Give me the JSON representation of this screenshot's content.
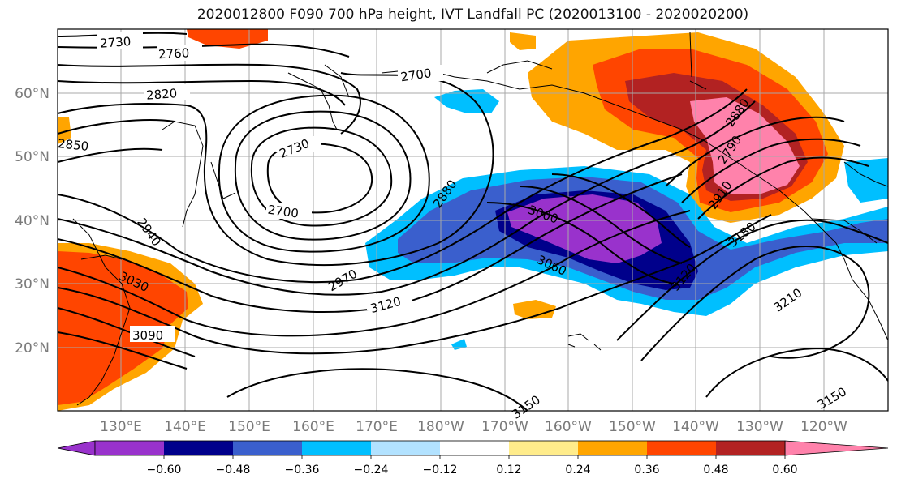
{
  "title": "2020012800 F090 700 hPa height, IVT Landfall PC (2020013100 - 2020020200)",
  "lat_labels": [
    "60°N",
    "50°N",
    "40°N",
    "30°N",
    "20°N"
  ],
  "lon_labels": [
    "130°E",
    "140°E",
    "150°E",
    "160°E",
    "170°E",
    "180°W",
    "170°W",
    "160°W",
    "150°W",
    "140°W",
    "130°W",
    "120°W"
  ],
  "colorbar": {
    "colors": [
      "#9932cc",
      "#00008b",
      "#3a5fcd",
      "#00bfff",
      "#b2e2ff",
      "#ffffff",
      "#ffec8b",
      "#ffa500",
      "#ff4500",
      "#b22222",
      "#ff82ab"
    ],
    "tick_labels": [
      "−0.60",
      "−0.48",
      "−0.36",
      "−0.24",
      "−0.12",
      "0.12",
      "0.24",
      "0.36",
      "0.48",
      "0.60"
    ]
  },
  "contour_labels": [
    "2730",
    "2760",
    "2820",
    "2850",
    "2700",
    "2730",
    "2700",
    "2880",
    "2940",
    "2970",
    "3000",
    "3030",
    "3060",
    "3090",
    "3120",
    "3150",
    "3150",
    "3180",
    "3210",
    "2790",
    "2910",
    "2880",
    "3120"
  ]
}
